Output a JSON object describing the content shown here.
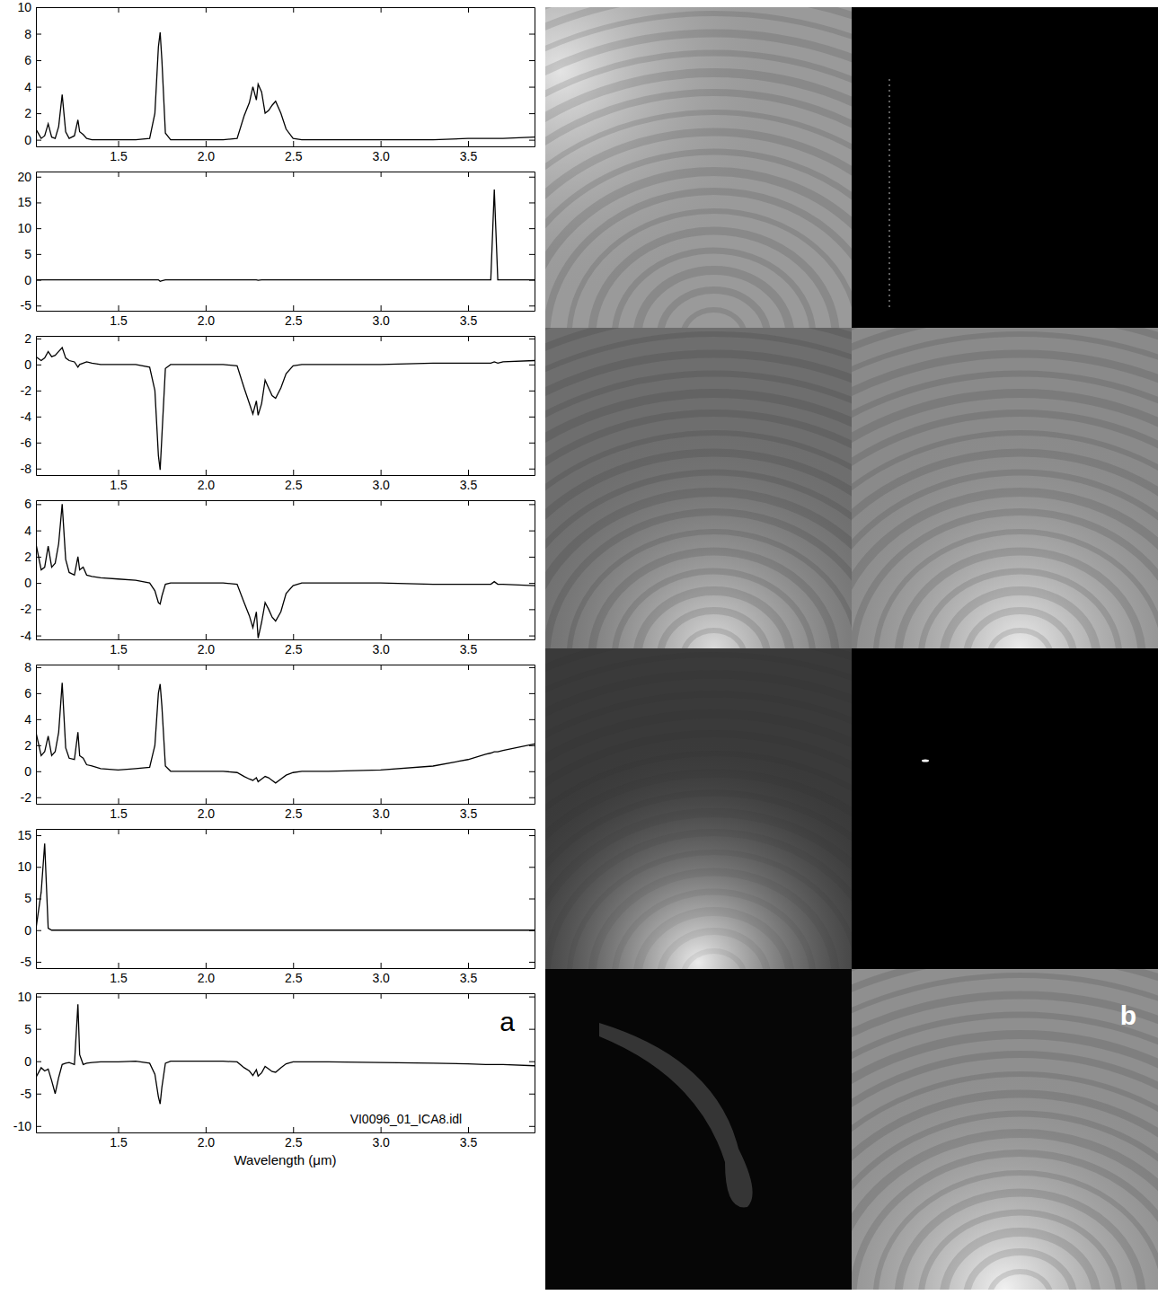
{
  "chart_data": [
    {
      "type": "line",
      "color": "#000000",
      "x": [
        1.03,
        1.06,
        1.08,
        1.1,
        1.12,
        1.14,
        1.16,
        1.18,
        1.2,
        1.22,
        1.25,
        1.27,
        1.28,
        1.3,
        1.32,
        1.35,
        1.4,
        1.5,
        1.6,
        1.68,
        1.71,
        1.73,
        1.74,
        1.75,
        1.77,
        1.8,
        1.9,
        2.0,
        2.1,
        2.18,
        2.22,
        2.25,
        2.27,
        2.29,
        2.3,
        2.32,
        2.34,
        2.36,
        2.38,
        2.4,
        2.43,
        2.46,
        2.5,
        2.55,
        2.7,
        3.0,
        3.3,
        3.5,
        3.6,
        3.63,
        3.65,
        3.67,
        3.7,
        3.88
      ],
      "values": [
        0.8,
        0.1,
        0.3,
        1.2,
        0.2,
        0.1,
        1.0,
        3.4,
        0.6,
        0.1,
        0.3,
        1.5,
        0.6,
        0.4,
        0.1,
        0,
        0,
        0,
        0,
        0.1,
        2.0,
        7.0,
        8.1,
        6.0,
        0.5,
        0,
        0,
        0,
        0,
        0.1,
        1.8,
        2.8,
        4.0,
        3.0,
        4.2,
        3.6,
        2.0,
        2.2,
        2.6,
        2.9,
        2.0,
        0.8,
        0.1,
        0,
        0,
        0,
        0,
        0.1,
        0.1,
        0.1,
        0.1,
        0.1,
        0.1,
        0.2
      ],
      "xlim": [
        1.03,
        3.88
      ],
      "xticks": [
        1.5,
        {
          "value": 2,
          "label": "2.0"
        },
        2.5,
        {
          "value": 3,
          "label": "3.0"
        },
        3.5
      ],
      "ylim": [
        -0.5,
        10
      ],
      "yticks": [
        0,
        2,
        4,
        6,
        8,
        10
      ]
    },
    {
      "type": "line",
      "color": "#000000",
      "x": [
        1.03,
        1.06,
        1.08,
        1.1,
        1.12,
        1.14,
        1.16,
        1.18,
        1.2,
        1.22,
        1.25,
        1.27,
        1.28,
        1.3,
        1.32,
        1.35,
        1.4,
        1.5,
        1.6,
        1.68,
        1.71,
        1.73,
        1.74,
        1.75,
        1.77,
        1.8,
        1.9,
        2.0,
        2.1,
        2.18,
        2.22,
        2.25,
        2.27,
        2.29,
        2.3,
        2.32,
        2.34,
        2.36,
        2.38,
        2.4,
        2.43,
        2.46,
        2.5,
        2.55,
        2.7,
        3.0,
        3.3,
        3.5,
        3.6,
        3.63,
        3.65,
        3.67,
        3.7,
        3.88
      ],
      "values": [
        0,
        0,
        0,
        0,
        0,
        0,
        0,
        0,
        0,
        0,
        0,
        0,
        0,
        0,
        0,
        0,
        0,
        0,
        0,
        0,
        0,
        0,
        -0.3,
        -0.2,
        0,
        0,
        0,
        0,
        0,
        0,
        0,
        0,
        0,
        0,
        -0.1,
        0,
        0,
        0,
        0,
        0,
        0,
        0,
        0,
        0,
        0,
        0,
        0,
        0,
        0,
        0,
        17.5,
        0,
        0,
        0
      ],
      "xlim": [
        1.03,
        3.88
      ],
      "xticks": [
        1.5,
        {
          "value": 2,
          "label": "2.0"
        },
        2.5,
        {
          "value": 3,
          "label": "3.0"
        },
        3.5
      ],
      "ylim": [
        -6,
        21
      ],
      "yticks": [
        -5,
        0,
        5,
        10,
        15,
        20
      ]
    },
    {
      "type": "line",
      "color": "#000000",
      "x": [
        1.03,
        1.06,
        1.08,
        1.1,
        1.12,
        1.14,
        1.16,
        1.18,
        1.2,
        1.22,
        1.25,
        1.27,
        1.28,
        1.3,
        1.32,
        1.35,
        1.4,
        1.5,
        1.6,
        1.68,
        1.71,
        1.73,
        1.74,
        1.75,
        1.77,
        1.8,
        1.9,
        2.0,
        2.1,
        2.18,
        2.22,
        2.25,
        2.27,
        2.29,
        2.3,
        2.32,
        2.34,
        2.36,
        2.38,
        2.4,
        2.43,
        2.46,
        2.5,
        2.55,
        2.7,
        3.0,
        3.3,
        3.5,
        3.6,
        3.63,
        3.65,
        3.67,
        3.7,
        3.88
      ],
      "values": [
        0.6,
        0.3,
        0.5,
        1.0,
        0.6,
        0.7,
        1.0,
        1.3,
        0.5,
        0.3,
        0.2,
        -0.2,
        0,
        0.1,
        0.2,
        0.1,
        0,
        0,
        0,
        -0.2,
        -2.0,
        -7.0,
        -8.1,
        -5.5,
        -0.3,
        0,
        0,
        0,
        0,
        -0.1,
        -1.8,
        -3.0,
        -3.8,
        -2.8,
        -3.9,
        -3.0,
        -1.2,
        -1.8,
        -2.4,
        -2.6,
        -1.8,
        -0.7,
        -0.1,
        0,
        0,
        0,
        0.1,
        0.1,
        0.1,
        0.1,
        0.2,
        0.1,
        0.2,
        0.3
      ],
      "xlim": [
        1.03,
        3.88
      ],
      "xticks": [
        1.5,
        {
          "value": 2,
          "label": "2.0"
        },
        2.5,
        {
          "value": 3,
          "label": "3.0"
        },
        3.5
      ],
      "ylim": [
        -8.5,
        2.2
      ],
      "yticks": [
        -8,
        -6,
        -4,
        -2,
        0,
        2
      ]
    },
    {
      "type": "line",
      "color": "#000000",
      "x": [
        1.03,
        1.06,
        1.08,
        1.1,
        1.12,
        1.14,
        1.16,
        1.18,
        1.2,
        1.22,
        1.25,
        1.27,
        1.28,
        1.3,
        1.32,
        1.35,
        1.4,
        1.5,
        1.6,
        1.68,
        1.71,
        1.73,
        1.74,
        1.75,
        1.77,
        1.8,
        1.9,
        2.0,
        2.1,
        2.18,
        2.22,
        2.25,
        2.27,
        2.29,
        2.3,
        2.32,
        2.34,
        2.36,
        2.38,
        2.4,
        2.43,
        2.46,
        2.5,
        2.55,
        2.7,
        3.0,
        3.3,
        3.5,
        3.6,
        3.63,
        3.65,
        3.67,
        3.7,
        3.88
      ],
      "values": [
        3.0,
        1.0,
        1.2,
        2.8,
        1.2,
        1.5,
        3.0,
        6.0,
        1.8,
        0.8,
        0.6,
        2.0,
        1.0,
        1.2,
        0.6,
        0.5,
        0.4,
        0.3,
        0.2,
        0,
        -0.6,
        -1.5,
        -1.6,
        -1.0,
        -0.1,
        0,
        0,
        0,
        0,
        -0.1,
        -1.5,
        -2.5,
        -3.4,
        -2.2,
        -4.2,
        -3.0,
        -1.5,
        -2.0,
        -2.6,
        -2.9,
        -2.2,
        -0.8,
        -0.2,
        0,
        0,
        0,
        -0.1,
        -0.1,
        -0.1,
        -0.1,
        0.1,
        -0.1,
        -0.1,
        -0.2
      ],
      "xlim": [
        1.03,
        3.88
      ],
      "xticks": [
        1.5,
        {
          "value": 2,
          "label": "2.0"
        },
        2.5,
        {
          "value": 3,
          "label": "3.0"
        },
        3.5
      ],
      "ylim": [
        -4.3,
        6.3
      ],
      "yticks": [
        -4,
        -2,
        0,
        2,
        4,
        6
      ]
    },
    {
      "type": "line",
      "color": "#000000",
      "x": [
        1.03,
        1.06,
        1.08,
        1.1,
        1.12,
        1.14,
        1.16,
        1.18,
        1.2,
        1.22,
        1.25,
        1.27,
        1.28,
        1.3,
        1.32,
        1.35,
        1.4,
        1.5,
        1.6,
        1.68,
        1.71,
        1.73,
        1.74,
        1.75,
        1.77,
        1.8,
        1.9,
        2.0,
        2.1,
        2.18,
        2.22,
        2.25,
        2.27,
        2.29,
        2.3,
        2.32,
        2.34,
        2.36,
        2.38,
        2.4,
        2.43,
        2.46,
        2.5,
        2.55,
        2.7,
        3.0,
        3.3,
        3.5,
        3.6,
        3.63,
        3.65,
        3.67,
        3.7,
        3.88
      ],
      "values": [
        3.0,
        1.2,
        1.5,
        2.7,
        1.2,
        1.5,
        3.0,
        6.8,
        1.8,
        1.0,
        0.9,
        3.0,
        1.2,
        1.0,
        0.5,
        0.4,
        0.2,
        0.1,
        0.2,
        0.3,
        2.0,
        6.0,
        6.7,
        5.0,
        0.4,
        0,
        0,
        0,
        0,
        -0.1,
        -0.4,
        -0.6,
        -0.7,
        -0.5,
        -0.8,
        -0.6,
        -0.4,
        -0.5,
        -0.7,
        -0.9,
        -0.6,
        -0.3,
        -0.1,
        0,
        0,
        0.1,
        0.4,
        0.9,
        1.3,
        1.4,
        1.5,
        1.5,
        1.6,
        2.1
      ],
      "xlim": [
        1.03,
        3.88
      ],
      "xticks": [
        1.5,
        {
          "value": 2,
          "label": "2.0"
        },
        2.5,
        {
          "value": 3,
          "label": "3.0"
        },
        3.5
      ],
      "ylim": [
        -2.5,
        8.2
      ],
      "yticks": [
        -2,
        0,
        2,
        4,
        6,
        8
      ]
    },
    {
      "type": "line",
      "color": "#000000",
      "x": [
        1.03,
        1.06,
        1.08,
        1.1,
        1.12,
        1.14,
        1.16,
        1.18,
        1.2,
        1.22,
        1.25,
        1.27,
        1.28,
        1.3,
        1.32,
        1.35,
        1.4,
        1.5,
        1.6,
        1.68,
        1.71,
        1.73,
        1.74,
        1.75,
        1.77,
        1.8,
        1.9,
        2.0,
        2.1,
        2.18,
        2.22,
        2.25,
        2.27,
        2.29,
        2.3,
        2.32,
        2.34,
        2.36,
        2.38,
        2.4,
        2.43,
        2.46,
        2.5,
        2.55,
        2.7,
        3.0,
        3.3,
        3.5,
        3.6,
        3.63,
        3.65,
        3.67,
        3.7,
        3.88
      ],
      "values": [
        0.2,
        6.0,
        13.7,
        0.3,
        0,
        0,
        0,
        0,
        0,
        0,
        0,
        0,
        0,
        0,
        0,
        0,
        0,
        0,
        0,
        0,
        0,
        0,
        0,
        0,
        0,
        0,
        0,
        0,
        0,
        0,
        0,
        0,
        0,
        0,
        0,
        0,
        0,
        0,
        0,
        0,
        0,
        0,
        0,
        0,
        0,
        0,
        0,
        0,
        0,
        0,
        0,
        0,
        0,
        0
      ],
      "xlim": [
        1.03,
        3.88
      ],
      "xticks": [
        1.5,
        {
          "value": 2,
          "label": "2.0"
        },
        2.5,
        {
          "value": 3,
          "label": "3.0"
        },
        3.5
      ],
      "ylim": [
        -6,
        16
      ],
      "yticks": [
        -5,
        0,
        5,
        10,
        15
      ]
    },
    {
      "type": "line",
      "color": "#000000",
      "x": [
        1.03,
        1.06,
        1.08,
        1.1,
        1.12,
        1.14,
        1.16,
        1.18,
        1.2,
        1.22,
        1.25,
        1.27,
        1.28,
        1.3,
        1.32,
        1.35,
        1.4,
        1.5,
        1.6,
        1.68,
        1.71,
        1.73,
        1.74,
        1.75,
        1.77,
        1.8,
        1.9,
        2.0,
        2.1,
        2.18,
        2.22,
        2.25,
        2.27,
        2.29,
        2.3,
        2.32,
        2.34,
        2.36,
        2.38,
        2.4,
        2.43,
        2.46,
        2.5,
        2.55,
        2.7,
        3.0,
        3.3,
        3.5,
        3.6,
        3.63,
        3.65,
        3.67,
        3.7,
        3.88
      ],
      "values": [
        -2.5,
        -1.0,
        -1.5,
        -1.2,
        -3.0,
        -5.0,
        -2.5,
        -0.5,
        -0.3,
        -0.2,
        -0.5,
        8.8,
        1.0,
        -0.5,
        -0.3,
        -0.2,
        -0.1,
        -0.1,
        0,
        -0.3,
        -2.0,
        -5.5,
        -6.6,
        -4.0,
        -0.3,
        0,
        0,
        0,
        0,
        -0.1,
        -1.0,
        -1.5,
        -2.2,
        -1.3,
        -2.3,
        -1.8,
        -0.8,
        -1.2,
        -1.6,
        -1.7,
        -1.0,
        -0.4,
        -0.1,
        -0.1,
        -0.1,
        -0.2,
        -0.3,
        -0.4,
        -0.5,
        -0.5,
        -0.5,
        -0.5,
        -0.5,
        -0.7
      ],
      "xlim": [
        1.03,
        3.88
      ],
      "xticks": [
        1.5,
        {
          "value": 2,
          "label": "2.0"
        },
        2.5,
        {
          "value": 3,
          "label": "3.0"
        },
        3.5
      ],
      "ylim": [
        -11,
        10.5
      ],
      "yticks": [
        -10,
        -5,
        0,
        5,
        10
      ],
      "x_label": "Wavelength (μm)",
      "annotation": "VI0096_01_ICA8.idl",
      "panel_label": "a"
    }
  ],
  "image_panel": {
    "panel_label": "b"
  }
}
